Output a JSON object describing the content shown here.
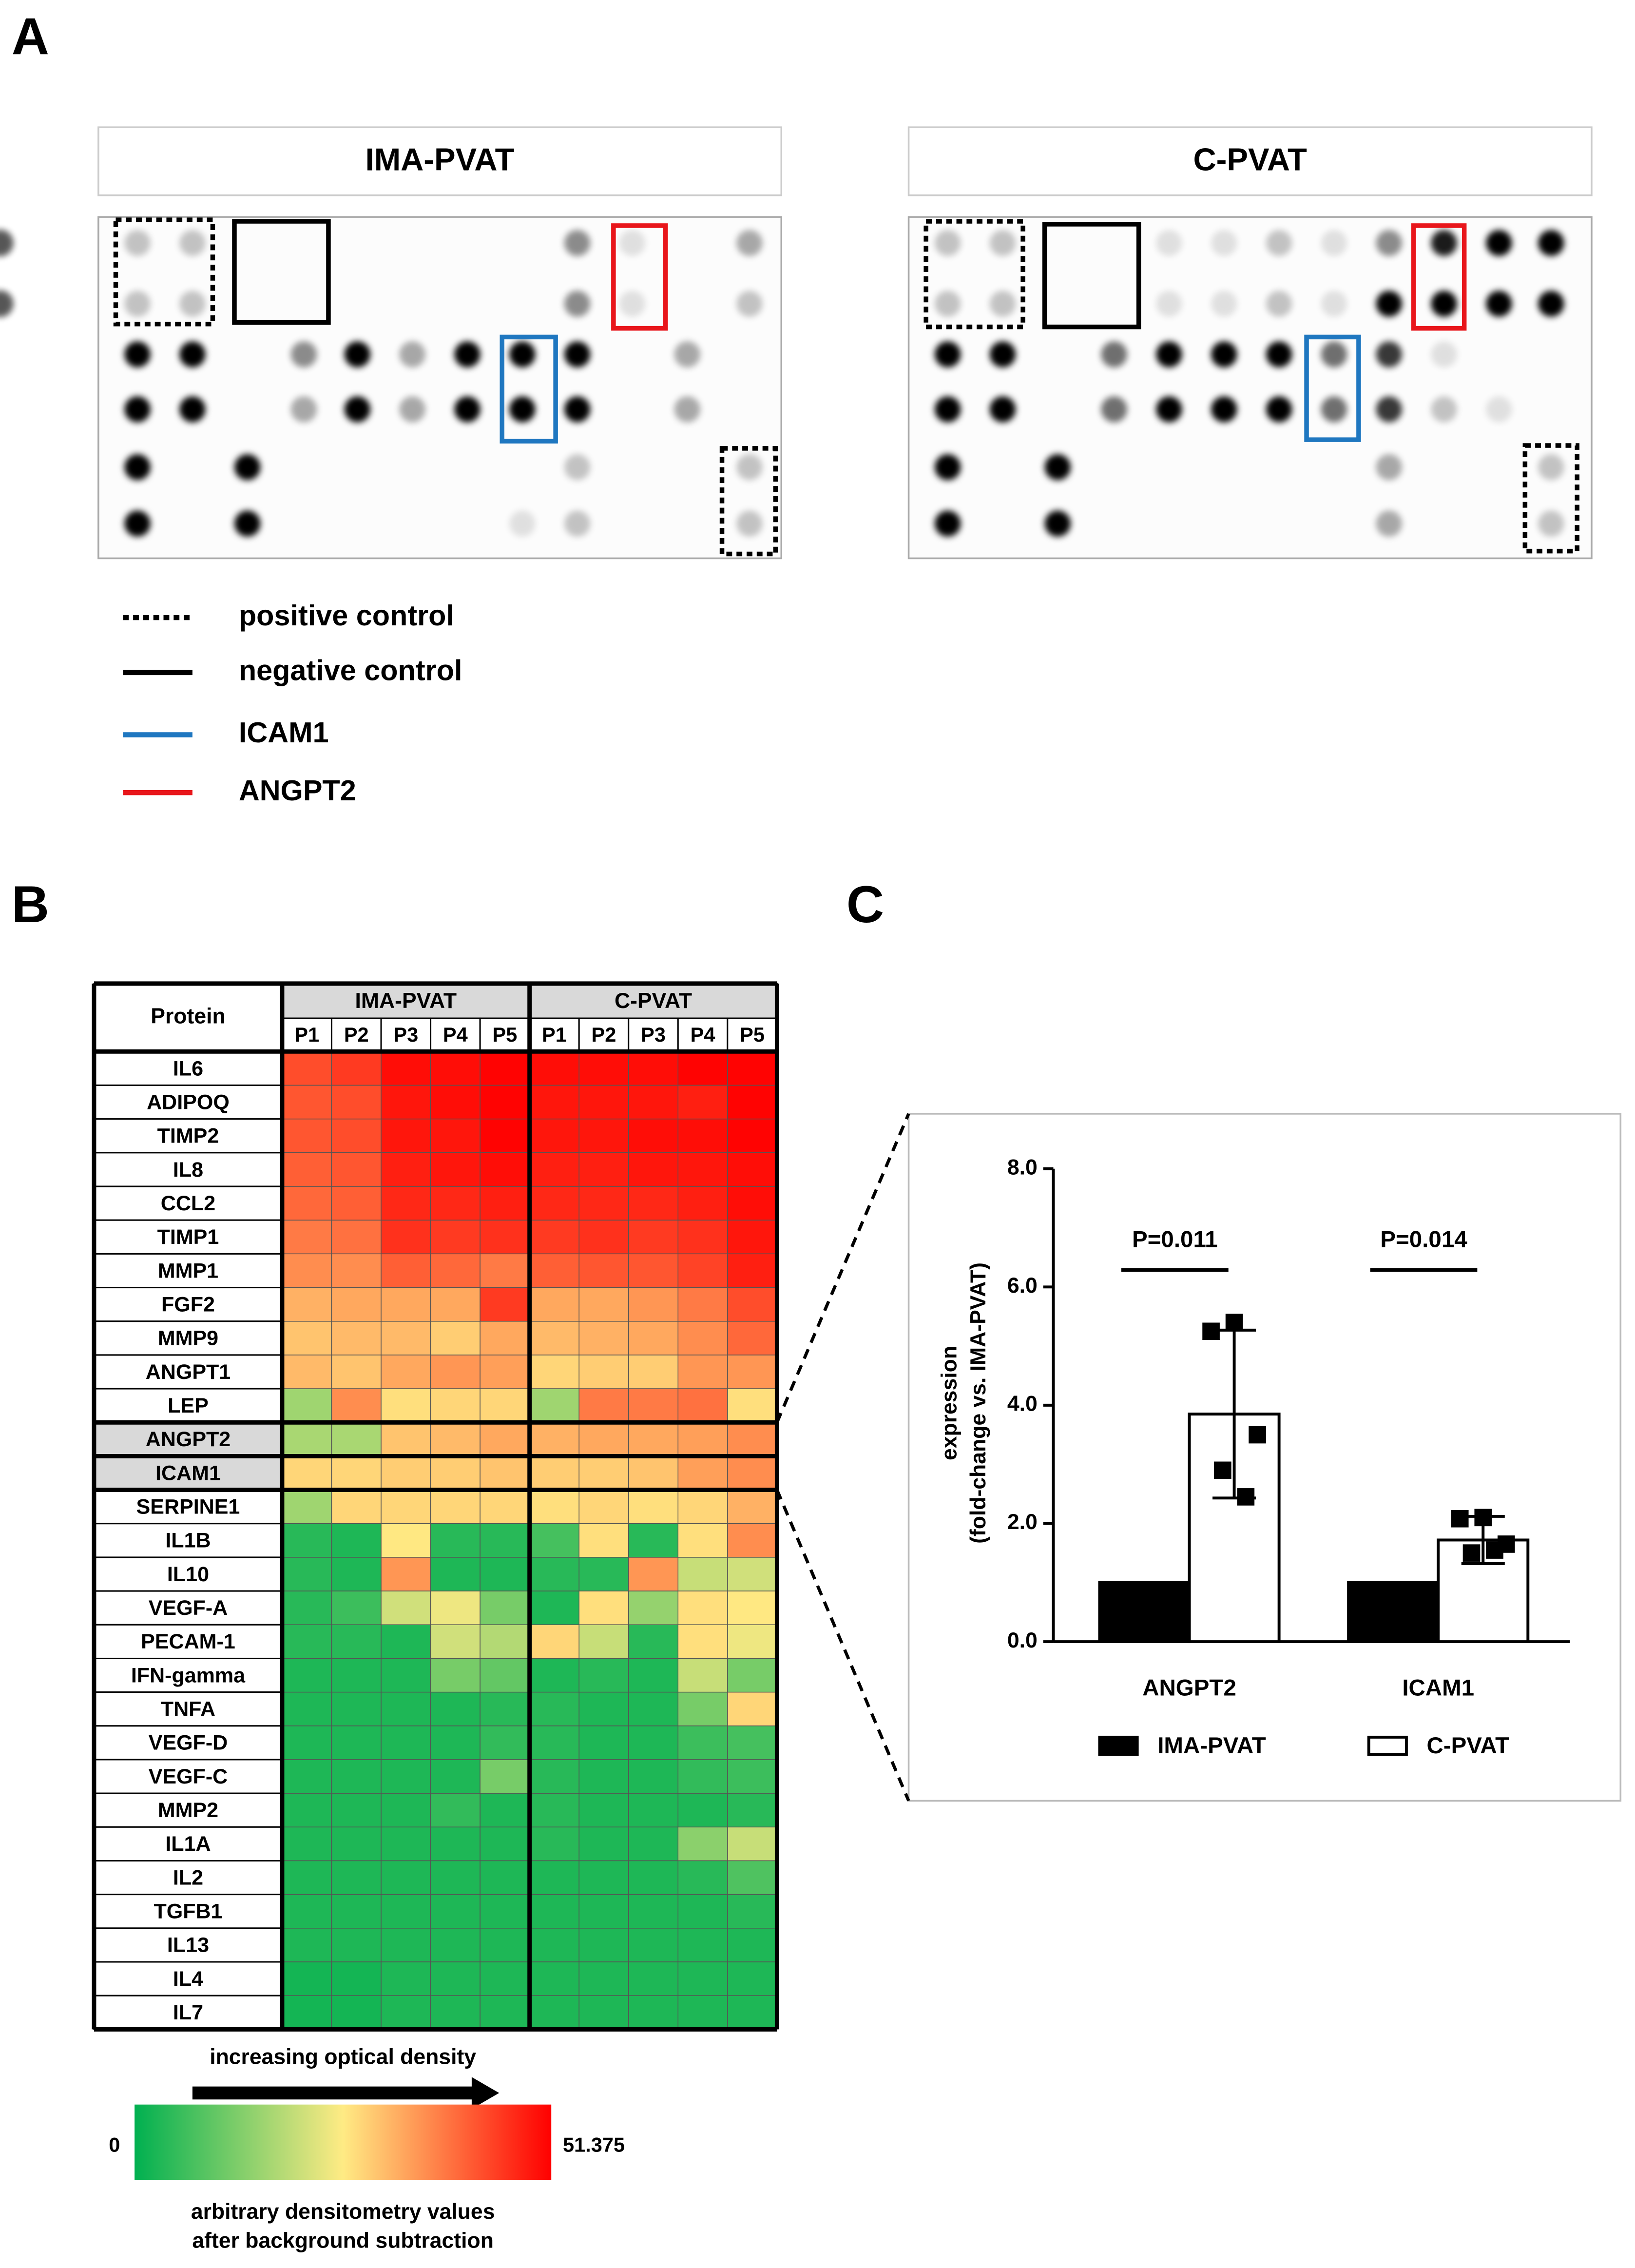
{
  "panel_labels": [
    "A",
    "B",
    "C"
  ],
  "blots": {
    "titles": [
      "IMA-PVAT",
      "C-PVAT"
    ]
  },
  "blot_legend": [
    {
      "label": "positive control",
      "color": "#000000",
      "style": "dotted"
    },
    {
      "label": "negative control",
      "color": "#000000",
      "style": "solid"
    },
    {
      "label": "ICAM1",
      "color": "#1f77c0",
      "style": "solid"
    },
    {
      "label": "ANGPT2",
      "color": "#e8161b",
      "style": "solid"
    }
  ],
  "chart_data": [
    {
      "type": "heatmap",
      "row_header": "Protein",
      "groups": [
        "IMA-PVAT",
        "C-PVAT"
      ],
      "columns": [
        "P1",
        "P2",
        "P3",
        "P4",
        "P5",
        "P1",
        "P2",
        "P3",
        "P4",
        "P5"
      ],
      "rows": [
        "IL6",
        "ADIPOQ",
        "TIMP2",
        "IL8",
        "CCL2",
        "TIMP1",
        "MMP1",
        "FGF2",
        "MMP9",
        "ANGPT1",
        "LEP",
        "ANGPT2",
        "ICAM1",
        "SERPINE1",
        "IL1B",
        "IL10",
        "VEGF-A",
        "PECAM-1",
        "IFN-gamma",
        "TNFA",
        "VEGF-D",
        "VEGF-C",
        "MMP2",
        "IL1A",
        "IL2",
        "TGFB1",
        "IL13",
        "IL4",
        "IL7"
      ],
      "values": [
        [
          43,
          45,
          50,
          50,
          51,
          50,
          50,
          50,
          51,
          51
        ],
        [
          42,
          43,
          49,
          50,
          51,
          49,
          49,
          49,
          48,
          51
        ],
        [
          42,
          43,
          49,
          49,
          51,
          49,
          49,
          50,
          50,
          51
        ],
        [
          41,
          42,
          48,
          49,
          50,
          48,
          48,
          49,
          49,
          50
        ],
        [
          40,
          41,
          47,
          47,
          48,
          47,
          47,
          47,
          48,
          50
        ],
        [
          38,
          39,
          46,
          45,
          46,
          45,
          46,
          45,
          46,
          49
        ],
        [
          36,
          36,
          41,
          40,
          38,
          41,
          42,
          42,
          44,
          48
        ],
        [
          32,
          33,
          33,
          33,
          45,
          33,
          33,
          35,
          38,
          43
        ],
        [
          30,
          31,
          31,
          29,
          33,
          31,
          32,
          33,
          36,
          40
        ],
        [
          31,
          30,
          33,
          35,
          34,
          28,
          29,
          29,
          35,
          35
        ],
        [
          16,
          36,
          27,
          28,
          28,
          16,
          38,
          38,
          39,
          27
        ],
        [
          17,
          17,
          30,
          31,
          33,
          32,
          33,
          33,
          34,
          36
        ],
        [
          28,
          28,
          29,
          29,
          30,
          29,
          29,
          30,
          34,
          36
        ],
        [
          16,
          28,
          28,
          28,
          28,
          27,
          28,
          27,
          28,
          32
        ],
        [
          4,
          3,
          26,
          4,
          4,
          7,
          27,
          4,
          27,
          36
        ],
        [
          4,
          3,
          35,
          3,
          3,
          4,
          4,
          35,
          20,
          21
        ],
        [
          4,
          6,
          21,
          24,
          12,
          3,
          27,
          15,
          27,
          26
        ],
        [
          4,
          4,
          3,
          21,
          18,
          28,
          20,
          4,
          27,
          24
        ],
        [
          3,
          3,
          3,
          12,
          10,
          3,
          4,
          3,
          20,
          12
        ],
        [
          3,
          3,
          3,
          3,
          4,
          4,
          3,
          3,
          12,
          28
        ],
        [
          3,
          3,
          3,
          3,
          5,
          4,
          3,
          3,
          6,
          7
        ],
        [
          3,
          3,
          3,
          3,
          12,
          4,
          3,
          3,
          5,
          6
        ],
        [
          3,
          3,
          3,
          5,
          3,
          4,
          3,
          3,
          3,
          4
        ],
        [
          3,
          3,
          3,
          3,
          3,
          4,
          3,
          3,
          14,
          20
        ],
        [
          3,
          3,
          3,
          3,
          3,
          3,
          3,
          3,
          4,
          8
        ],
        [
          3,
          3,
          3,
          3,
          3,
          3,
          3,
          3,
          3,
          4
        ],
        [
          3,
          3,
          3,
          3,
          3,
          3,
          3,
          3,
          3,
          3
        ],
        [
          2,
          2,
          3,
          3,
          3,
          3,
          3,
          3,
          3,
          3
        ],
        [
          2,
          2,
          3,
          3,
          3,
          3,
          3,
          3,
          3,
          3
        ]
      ],
      "zlim": [
        0,
        51.375
      ],
      "zticks": [
        0,
        51.375
      ],
      "colors": [
        "#00b050",
        "#ffeb84",
        "#ff0000"
      ],
      "arrow_label": "increasing optical density",
      "colorbar_label": [
        "arbitrary densitometry values",
        "after background subtraction"
      ]
    },
    {
      "type": "bar",
      "categories": [
        "ANGPT2",
        "ICAM1"
      ],
      "series": [
        {
          "name": "IMA-PVAT",
          "color": "#000000",
          "values": [
            1,
            1
          ]
        },
        {
          "name": "C-PVAT",
          "color": "#ffffff",
          "values": [
            3.85,
            1.72
          ],
          "errors": [
            1.42,
            0.4
          ],
          "points": [
            [
              5.4,
              5.25,
              3.5,
              2.9,
              2.45
            ],
            [
              2.1,
              2.08,
              1.65,
              1.5,
              1.55
            ]
          ]
        }
      ],
      "ylabel": [
        "expression",
        "(fold-change vs. IMA-PVAT)"
      ],
      "ylim": [
        0,
        8
      ],
      "yticks": [
        {
          "value": 0,
          "label": "0.0"
        },
        {
          "value": 2,
          "label": "2.0"
        },
        {
          "value": 4,
          "label": "4.0"
        },
        {
          "value": 6,
          "label": "6.0"
        },
        {
          "value": 8,
          "label": "8.0"
        }
      ],
      "annotations": [
        "P=0.011",
        "P=0.014"
      ]
    }
  ]
}
